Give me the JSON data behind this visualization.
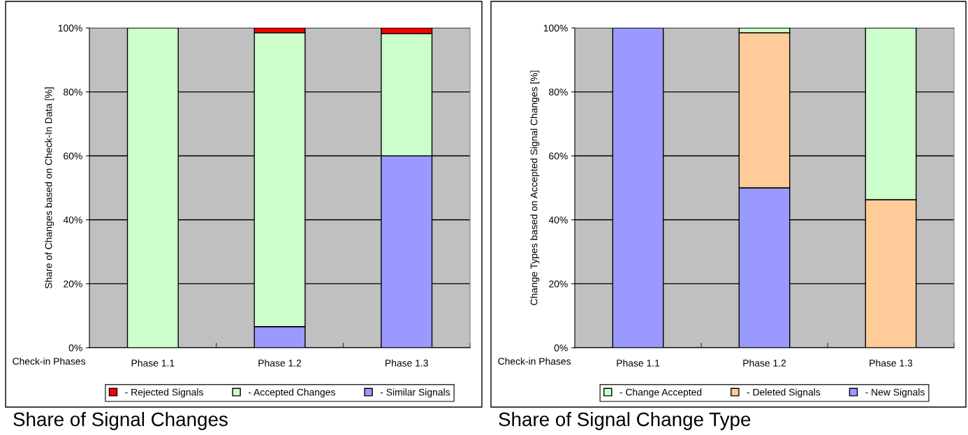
{
  "chart_data": [
    {
      "type": "bar",
      "title": "Share of Signal Changes",
      "ylabel": "Share of Changes based on Check-In Data [%]",
      "xlabel": "Check-in Phases",
      "categories": [
        "Phase 1.1",
        "Phase 1.2",
        "Phase 1.3"
      ],
      "stacked": true,
      "series": [
        {
          "name": "- Similar Signals",
          "color": "#9999ff",
          "values": [
            null,
            6.6,
            60
          ]
        },
        {
          "name": "- Accepted Changes",
          "color": "#ccffcc",
          "values": [
            100,
            91.9,
            38.2
          ]
        },
        {
          "name": "- Rejected Signals",
          "color": "#ff0000",
          "values": [
            null,
            1.5,
            1.8
          ]
        }
      ],
      "ylim": [
        0,
        100
      ],
      "yticks": [
        {
          "value": 0,
          "label": "0%"
        },
        {
          "value": 20,
          "label": "20%"
        },
        {
          "value": 40,
          "label": "40%"
        },
        {
          "value": 60,
          "label": "60%"
        },
        {
          "value": 80,
          "label": "80%"
        },
        {
          "value": 100,
          "label": "100%"
        }
      ],
      "grid": "y",
      "legend": "bottom"
    },
    {
      "type": "bar",
      "title": "Share of Signal Change Type",
      "ylabel": "Change Types based on Accepted Signal Changes [%]",
      "xlabel": "Check-in Phases",
      "categories": [
        "Phase 1.1",
        "Phase 1.2",
        "Phase 1.3"
      ],
      "stacked": true,
      "series": [
        {
          "name": "- New Signals",
          "color": "#9999ff",
          "values": [
            100,
            50,
            null
          ]
        },
        {
          "name": "- Deleted Signals",
          "color": "#ffcc99",
          "values": [
            null,
            48.5,
            46.3
          ]
        },
        {
          "name": "- Change Accepted",
          "color": "#ccffcc",
          "values": [
            null,
            1.5,
            53.7
          ]
        }
      ],
      "ylim": [
        0,
        100
      ],
      "yticks": [
        {
          "value": 0,
          "label": "0%"
        },
        {
          "value": 20,
          "label": "20%"
        },
        {
          "value": 40,
          "label": "40%"
        },
        {
          "value": 60,
          "label": "60%"
        },
        {
          "value": 80,
          "label": "80%"
        },
        {
          "value": 100,
          "label": "100%"
        }
      ],
      "grid": "y",
      "legend": "bottom"
    }
  ]
}
